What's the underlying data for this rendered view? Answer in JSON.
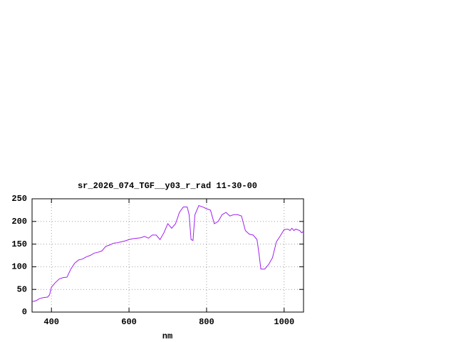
{
  "chart_data": {
    "type": "line",
    "title": "sr_2026_074_TGF__y03_r_rad 11-30-00",
    "x_label": "nm",
    "x": [
      350,
      360,
      370,
      380,
      390,
      395,
      400,
      410,
      420,
      430,
      440,
      450,
      460,
      470,
      480,
      490,
      500,
      510,
      520,
      530,
      540,
      550,
      560,
      570,
      580,
      590,
      600,
      610,
      620,
      630,
      640,
      650,
      660,
      670,
      680,
      690,
      700,
      710,
      720,
      730,
      740,
      750,
      755,
      760,
      765,
      770,
      780,
      790,
      800,
      810,
      815,
      820,
      830,
      840,
      850,
      860,
      870,
      880,
      890,
      900,
      910,
      920,
      930,
      935,
      940,
      950,
      960,
      970,
      980,
      990,
      1000,
      1010,
      1015,
      1020,
      1025,
      1030,
      1040,
      1045,
      1050
    ],
    "values": [
      23,
      25,
      30,
      32,
      33,
      38,
      55,
      65,
      73,
      76,
      77,
      95,
      108,
      115,
      117,
      122,
      125,
      130,
      132,
      135,
      145,
      148,
      152,
      153,
      155,
      157,
      160,
      162,
      163,
      164,
      167,
      163,
      170,
      170,
      160,
      175,
      195,
      185,
      195,
      220,
      232,
      232,
      215,
      160,
      158,
      215,
      235,
      232,
      228,
      225,
      210,
      195,
      200,
      215,
      220,
      212,
      215,
      215,
      212,
      180,
      172,
      170,
      160,
      130,
      95,
      95,
      105,
      120,
      155,
      168,
      182,
      183,
      180,
      185,
      180,
      183,
      180,
      175,
      178
    ],
    "color": "#a020f0",
    "xlim": [
      350,
      1050
    ],
    "xticks": [
      400,
      600,
      800,
      1000
    ],
    "ylim": [
      0,
      250
    ],
    "yticks": [
      0,
      50,
      100,
      150,
      200,
      250
    ],
    "grid": true
  }
}
